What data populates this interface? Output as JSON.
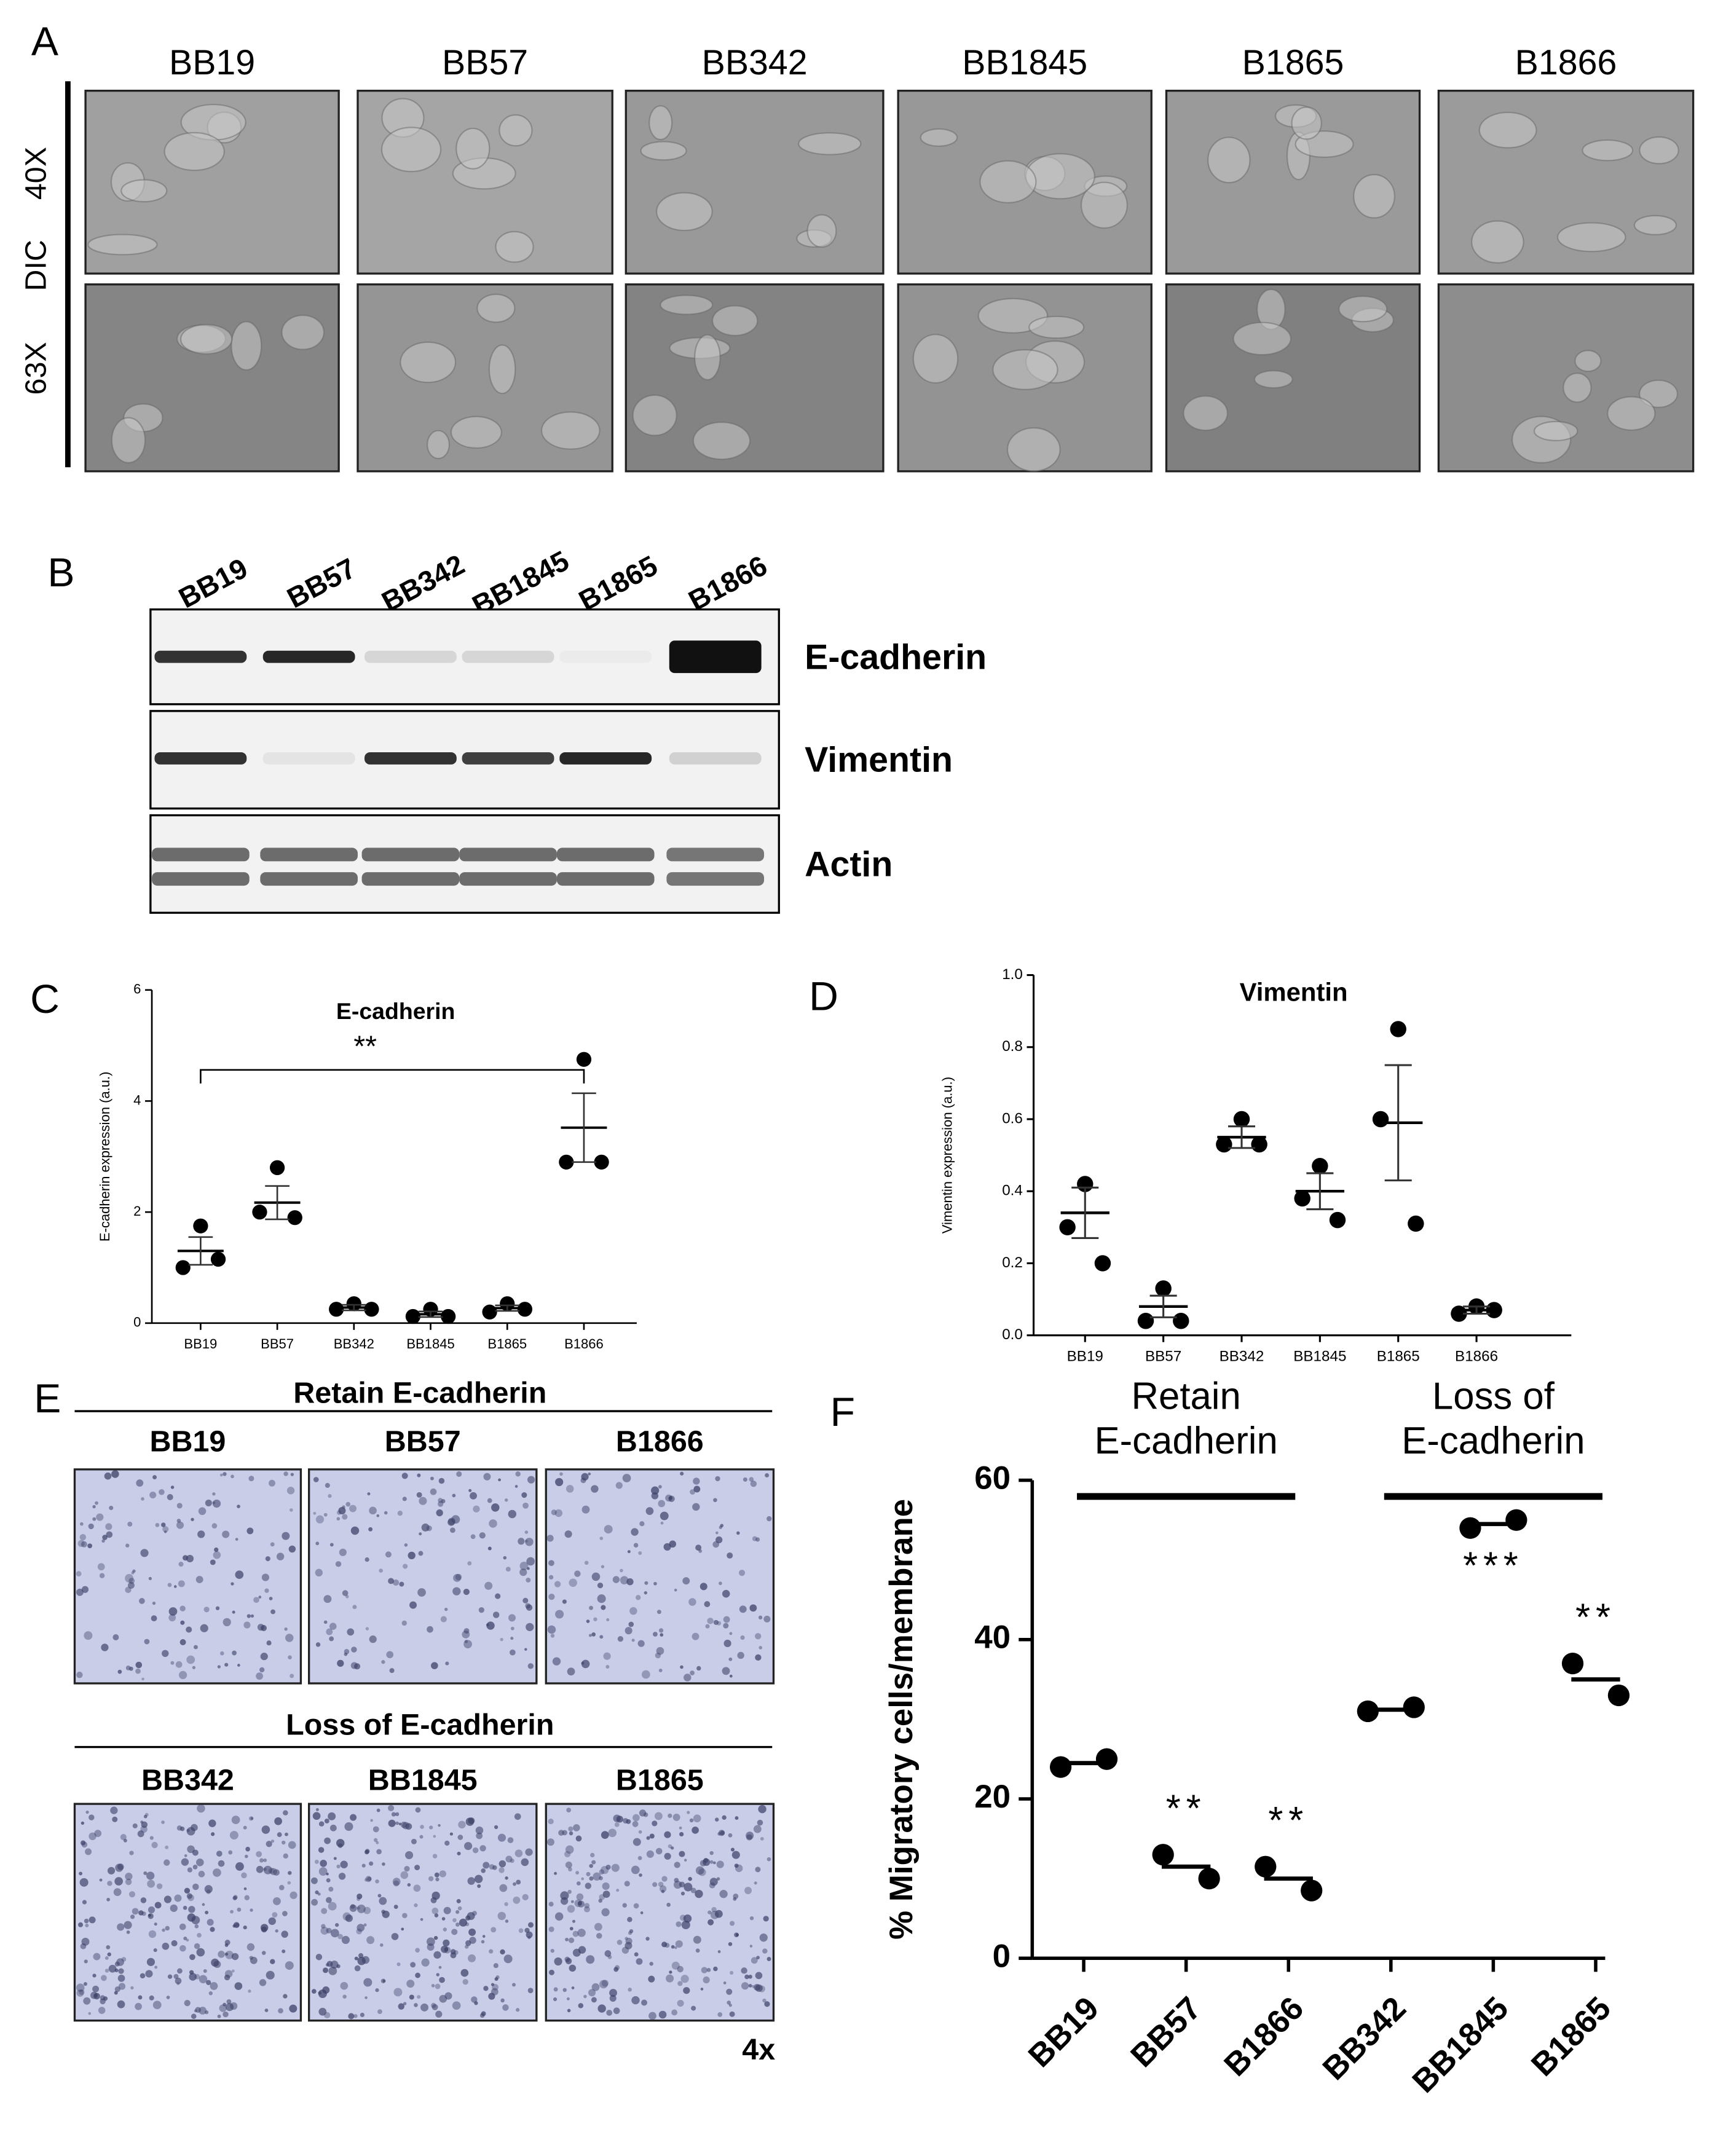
{
  "panels": {
    "A": {
      "label": "A",
      "columns": [
        "BB19",
        "BB57",
        "BB342",
        "BB1845",
        "B1865",
        "B1866"
      ],
      "row_group": "DIC",
      "rows": [
        "40X",
        "63X"
      ]
    },
    "B": {
      "label": "B",
      "lanes": [
        "BB19",
        "BB57",
        "BB342",
        "BB1845",
        "B1865",
        "B1866"
      ],
      "proteins": [
        "E-cadherin",
        "Vimentin",
        "Actin"
      ]
    },
    "E": {
      "label": "E",
      "groups": [
        {
          "title": "Retain E-cadherin",
          "lines": [
            "BB19",
            "BB57",
            "B1866"
          ]
        },
        {
          "title": "Loss of E-cadherin",
          "lines": [
            "BB342",
            "BB1845",
            "B1865"
          ]
        }
      ],
      "magnification": "4x"
    }
  },
  "chart_data": [
    {
      "type": "dot_plot",
      "panel": "C",
      "title": "E-cadherin",
      "y_label": "E-cadherin expression (a.u.)",
      "categories": [
        "BB19",
        "BB57",
        "BB342",
        "BB1845",
        "B1865",
        "B1866"
      ],
      "values": [
        [
          1.75,
          1.0,
          1.15
        ],
        [
          2.8,
          2.0,
          1.9
        ],
        [
          0.35,
          0.25,
          0.25
        ],
        [
          0.25,
          0.12,
          0.12
        ],
        [
          0.35,
          0.2,
          0.25
        ],
        [
          4.75,
          2.9,
          2.9
        ]
      ],
      "means": [
        1.3,
        2.17,
        0.28,
        0.16,
        0.27,
        3.52
      ],
      "sem": [
        0.25,
        0.3,
        0.05,
        0.05,
        0.05,
        0.62
      ],
      "color": "#000000",
      "ylim": [
        0,
        6
      ],
      "yticks": [
        0,
        2,
        4,
        6
      ],
      "annotations": [
        {
          "text": "**",
          "from": "BB19",
          "to": "B1866"
        }
      ]
    },
    {
      "type": "dot_plot",
      "panel": "D",
      "title": "Vimentin",
      "y_label": "Vimentin expression (a.u.)",
      "categories": [
        "BB19",
        "BB57",
        "BB342",
        "BB1845",
        "B1865",
        "B1866"
      ],
      "values": [
        [
          0.42,
          0.3,
          0.2
        ],
        [
          0.13,
          0.04,
          0.04
        ],
        [
          0.6,
          0.53,
          0.53
        ],
        [
          0.47,
          0.38,
          0.32
        ],
        [
          0.85,
          0.6,
          0.31
        ],
        [
          0.08,
          0.06,
          0.07
        ]
      ],
      "means": [
        0.34,
        0.08,
        0.55,
        0.4,
        0.59,
        0.07
      ],
      "sem": [
        0.07,
        0.03,
        0.03,
        0.05,
        0.16,
        0.01
      ],
      "color": "#000000",
      "ylim": [
        0,
        1
      ],
      "yticks": [
        {
          "value": 0,
          "label": "0.0"
        },
        0.2,
        0.4,
        0.6,
        0.8,
        {
          "value": 1,
          "label": "1.0"
        }
      ]
    },
    {
      "type": "dot_plot",
      "panel": "F",
      "y_label": "% Migratory cells/membrane",
      "categories": [
        "BB19",
        "BB57",
        "B1866",
        "BB342",
        "BB1845",
        "B1865"
      ],
      "values": [
        [
          24,
          25
        ],
        [
          13,
          10
        ],
        [
          11.5,
          8.5
        ],
        [
          31,
          31.5
        ],
        [
          54,
          55
        ],
        [
          37,
          33
        ]
      ],
      "means": [
        24.5,
        11.5,
        10,
        31.2,
        54.5,
        35
      ],
      "color": "#000000",
      "ylim": [
        0,
        60
      ],
      "yticks": [
        0,
        20,
        40,
        60
      ],
      "groups": [
        {
          "label": [
            "Retain",
            "E-cadherin"
          ],
          "from": "BB19",
          "to": "B1866"
        },
        {
          "label": [
            "Loss of",
            "E-cadherin"
          ],
          "from": "BB342",
          "to": "B1865"
        }
      ],
      "annotations": [
        {
          "text": "**",
          "category": "BB57",
          "position": "above"
        },
        {
          "text": "**",
          "category": "B1866",
          "position": "above"
        },
        {
          "text": "***",
          "category": "BB1845",
          "position": "below"
        },
        {
          "text": "**",
          "category": "B1865",
          "position": "above"
        }
      ]
    }
  ]
}
